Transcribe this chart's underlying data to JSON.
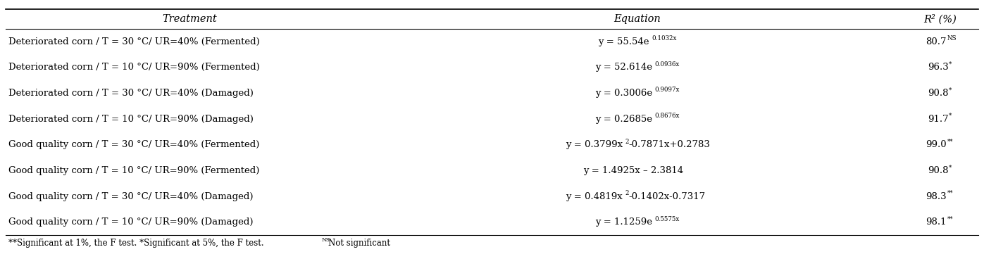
{
  "col_headers": [
    "Treatment",
    "Equation",
    "R² (%)"
  ],
  "rows": [
    {
      "treatment": "Deteriorated corn / T = 30 °C/ UR=40% (Fermented)",
      "equation_plain": "y = 55.54e",
      "equation_sup": "0.1032x",
      "equation_after": "",
      "r2": "80.7",
      "r2_sig": "NS"
    },
    {
      "treatment": "Deteriorated corn / T = 10 °C/ UR=90% (Fermented)",
      "equation_plain": "y = 52.614e",
      "equation_sup": "0.0936x",
      "equation_after": "",
      "r2": "96.3",
      "r2_sig": "*"
    },
    {
      "treatment": "Deteriorated corn / T = 30 °C/ UR=40% (Damaged)",
      "equation_plain": "y = 0.3006e",
      "equation_sup": "0.9097x",
      "equation_after": "",
      "r2": "90.8",
      "r2_sig": "*"
    },
    {
      "treatment": "Deteriorated corn / T = 10 °C/ UR=90% (Damaged)",
      "equation_plain": "y = 0.2685e",
      "equation_sup": "0.8676x",
      "equation_after": "",
      "r2": "91.7",
      "r2_sig": "*"
    },
    {
      "treatment": "Good quality corn / T = 30 °C/ UR=40% (Fermented)",
      "equation_plain": "y = 0.3799x",
      "equation_sup": "2",
      "equation_after": "-0.7871x+0.2783",
      "r2": "99.0",
      "r2_sig": "**"
    },
    {
      "treatment": "Good quality corn / T = 10 °C/ UR=90% (Fermented)",
      "equation_plain": "y = 1.4925x – 2.3814",
      "equation_sup": "",
      "equation_after": "",
      "r2": "90.8",
      "r2_sig": "*"
    },
    {
      "treatment": "Good quality corn / T = 30 °C/ UR=40% (Damaged)",
      "equation_plain": "y = 0.4819x",
      "equation_sup": "2",
      "equation_after": "-0.1402x-0.7317",
      "r2": "98.3",
      "r2_sig": "**"
    },
    {
      "treatment": "Good quality corn / T = 10 °C/ UR=90% (Damaged)",
      "equation_plain": "y = 1.1259e",
      "equation_sup": "0.5575x",
      "equation_after": "",
      "r2": "98.1",
      "r2_sig": "**"
    }
  ],
  "font_size": 9.5,
  "header_font_size": 10.5,
  "footnote_size": 8.5
}
